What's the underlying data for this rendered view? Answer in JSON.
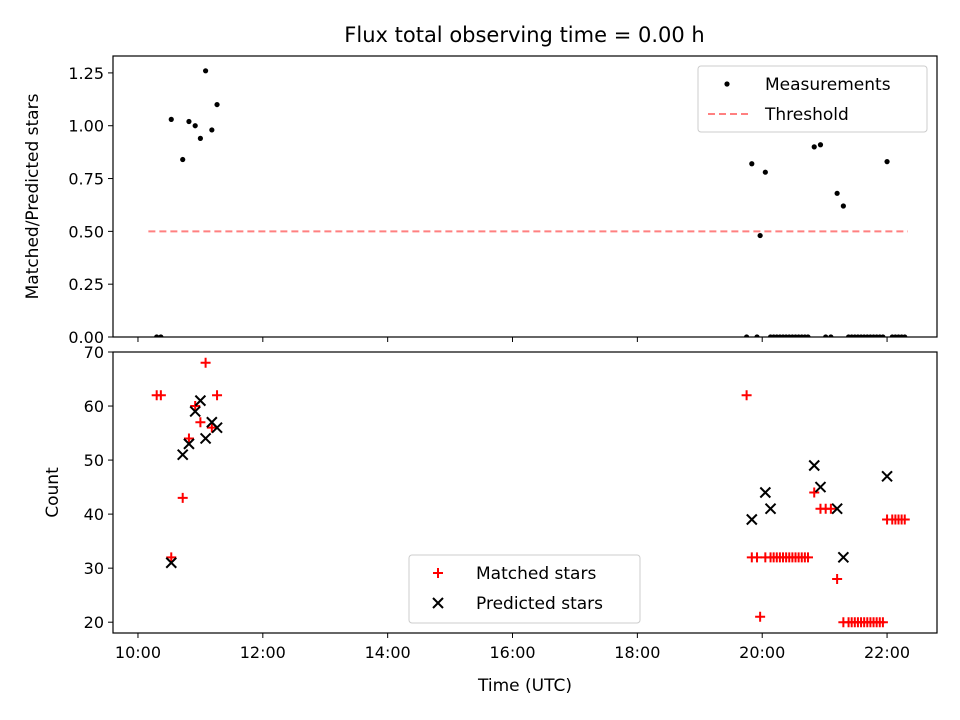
{
  "chart_data": [
    {
      "type": "scatter",
      "title": "Flux total observing time = 0.00 h",
      "ylabel": "Matched/Predicted stars",
      "ylim": [
        0,
        1.33
      ],
      "yticks": [
        0,
        0.25,
        0.5,
        0.75,
        1.0,
        1.25
      ],
      "ytick_labels": [
        "0.00",
        "0.25",
        "0.50",
        "0.75",
        "1.00",
        "1.25"
      ],
      "legend_placement": "top-right",
      "series": [
        {
          "name": "Measurements",
          "marker": "dot",
          "color": "#000000",
          "points": [
            [
              "10:18",
              0.0
            ],
            [
              "10:22",
              0.0
            ],
            [
              "10:32",
              1.03
            ],
            [
              "10:43",
              0.84
            ],
            [
              "10:49",
              1.02
            ],
            [
              "10:55",
              1.0
            ],
            [
              "11:00",
              0.94
            ],
            [
              "11:05",
              1.26
            ],
            [
              "11:11",
              0.98
            ],
            [
              "11:16",
              1.1
            ],
            [
              "19:45",
              0.0
            ],
            [
              "19:50",
              0.82
            ],
            [
              "19:55",
              0.0
            ],
            [
              "19:58",
              0.48
            ],
            [
              "20:03",
              0.78
            ],
            [
              "20:08",
              0.0
            ],
            [
              "20:11",
              0.0
            ],
            [
              "20:14",
              0.0
            ],
            [
              "20:17",
              0.0
            ],
            [
              "20:20",
              0.0
            ],
            [
              "20:23",
              0.0
            ],
            [
              "20:26",
              0.0
            ],
            [
              "20:29",
              0.0
            ],
            [
              "20:32",
              0.0
            ],
            [
              "20:35",
              0.0
            ],
            [
              "20:38",
              0.0
            ],
            [
              "20:41",
              0.0
            ],
            [
              "20:44",
              0.0
            ],
            [
              "20:50",
              0.9
            ],
            [
              "20:56",
              0.91
            ],
            [
              "21:01",
              0.0
            ],
            [
              "21:06",
              0.0
            ],
            [
              "21:12",
              0.68
            ],
            [
              "21:18",
              0.62
            ],
            [
              "21:23",
              0.0
            ],
            [
              "21:26",
              0.0
            ],
            [
              "21:29",
              0.0
            ],
            [
              "21:32",
              0.0
            ],
            [
              "21:35",
              0.0
            ],
            [
              "21:38",
              0.0
            ],
            [
              "21:41",
              0.0
            ],
            [
              "21:44",
              0.0
            ],
            [
              "21:47",
              0.0
            ],
            [
              "21:50",
              0.0
            ],
            [
              "21:53",
              0.0
            ],
            [
              "21:56",
              0.0
            ],
            [
              "22:00",
              0.83
            ],
            [
              "22:05",
              0.0
            ],
            [
              "22:08",
              0.0
            ],
            [
              "22:11",
              0.0
            ],
            [
              "22:14",
              0.0
            ],
            [
              "22:17",
              0.0
            ]
          ]
        },
        {
          "name": "Threshold",
          "marker": "dashed-line",
          "color": "#ff8080",
          "x_range": [
            "10:10",
            "22:20"
          ],
          "value": 0.5
        }
      ]
    },
    {
      "type": "scatter",
      "xlabel": "Time (UTC)",
      "ylabel": "Count",
      "ylim": [
        18,
        70
      ],
      "yticks": [
        20,
        30,
        40,
        50,
        60,
        70
      ],
      "xlim": [
        "09:36",
        "22:48"
      ],
      "xticks": [
        "10:00",
        "12:00",
        "14:00",
        "16:00",
        "18:00",
        "20:00",
        "22:00"
      ],
      "legend_placement": "lower-center",
      "series": [
        {
          "name": "Matched stars",
          "marker": "plus",
          "color": "#ff0000",
          "points": [
            [
              "10:18",
              62
            ],
            [
              "10:22",
              62
            ],
            [
              "10:32",
              32
            ],
            [
              "10:43",
              43
            ],
            [
              "10:49",
              54
            ],
            [
              "10:55",
              60
            ],
            [
              "11:00",
              57
            ],
            [
              "11:05",
              68
            ],
            [
              "11:11",
              56
            ],
            [
              "11:16",
              62
            ],
            [
              "19:45",
              62
            ],
            [
              "19:50",
              32
            ],
            [
              "19:55",
              32
            ],
            [
              "19:58",
              21
            ],
            [
              "20:03",
              32
            ],
            [
              "20:08",
              32
            ],
            [
              "20:11",
              32
            ],
            [
              "20:14",
              32
            ],
            [
              "20:17",
              32
            ],
            [
              "20:20",
              32
            ],
            [
              "20:23",
              32
            ],
            [
              "20:26",
              32
            ],
            [
              "20:29",
              32
            ],
            [
              "20:32",
              32
            ],
            [
              "20:35",
              32
            ],
            [
              "20:38",
              32
            ],
            [
              "20:41",
              32
            ],
            [
              "20:44",
              32
            ],
            [
              "20:50",
              44
            ],
            [
              "20:56",
              41
            ],
            [
              "21:01",
              41
            ],
            [
              "21:06",
              41
            ],
            [
              "21:12",
              28
            ],
            [
              "21:18",
              20
            ],
            [
              "21:23",
              20
            ],
            [
              "21:26",
              20
            ],
            [
              "21:29",
              20
            ],
            [
              "21:32",
              20
            ],
            [
              "21:35",
              20
            ],
            [
              "21:38",
              20
            ],
            [
              "21:41",
              20
            ],
            [
              "21:44",
              20
            ],
            [
              "21:47",
              20
            ],
            [
              "21:50",
              20
            ],
            [
              "21:53",
              20
            ],
            [
              "21:56",
              20
            ],
            [
              "22:00",
              39
            ],
            [
              "22:05",
              39
            ],
            [
              "22:08",
              39
            ],
            [
              "22:11",
              39
            ],
            [
              "22:14",
              39
            ],
            [
              "22:17",
              39
            ]
          ]
        },
        {
          "name": "Predicted stars",
          "marker": "cross",
          "color": "#000000",
          "points": [
            [
              "10:32",
              31
            ],
            [
              "10:43",
              51
            ],
            [
              "10:49",
              53
            ],
            [
              "10:55",
              59
            ],
            [
              "11:00",
              61
            ],
            [
              "11:05",
              54
            ],
            [
              "11:11",
              57
            ],
            [
              "11:16",
              56
            ],
            [
              "19:50",
              39
            ],
            [
              "20:03",
              44
            ],
            [
              "20:08",
              41
            ],
            [
              "20:50",
              49
            ],
            [
              "20:56",
              45
            ],
            [
              "21:12",
              41
            ],
            [
              "21:18",
              32
            ],
            [
              "22:00",
              47
            ]
          ]
        }
      ]
    }
  ]
}
